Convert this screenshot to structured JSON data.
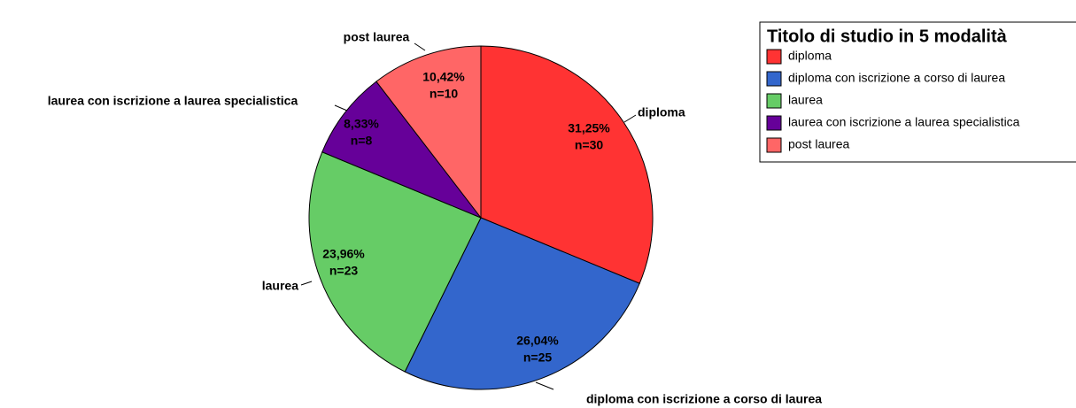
{
  "chart_data": {
    "type": "pie",
    "legend_title": "Titolo di studio in 5 modalità",
    "categories": [
      "diploma",
      "diploma con iscrizione a corso di laurea",
      "laurea",
      "laurea con iscrizione a laurea specialistica",
      "post laurea"
    ],
    "values": [
      31.25,
      26.04,
      23.96,
      8.33,
      10.42
    ],
    "value_labels": [
      "31,25%",
      "26,04%",
      "23,96%",
      "8,33%",
      "10,42%"
    ],
    "counts": [
      30,
      25,
      23,
      8,
      10
    ],
    "count_labels": [
      "n=30",
      "n=25",
      "n=23",
      "n=8",
      "n=10"
    ],
    "colors": [
      "#ff3333",
      "#3366cc",
      "#66cc66",
      "#660099",
      "#ff6666"
    ],
    "legend": "top-right"
  }
}
